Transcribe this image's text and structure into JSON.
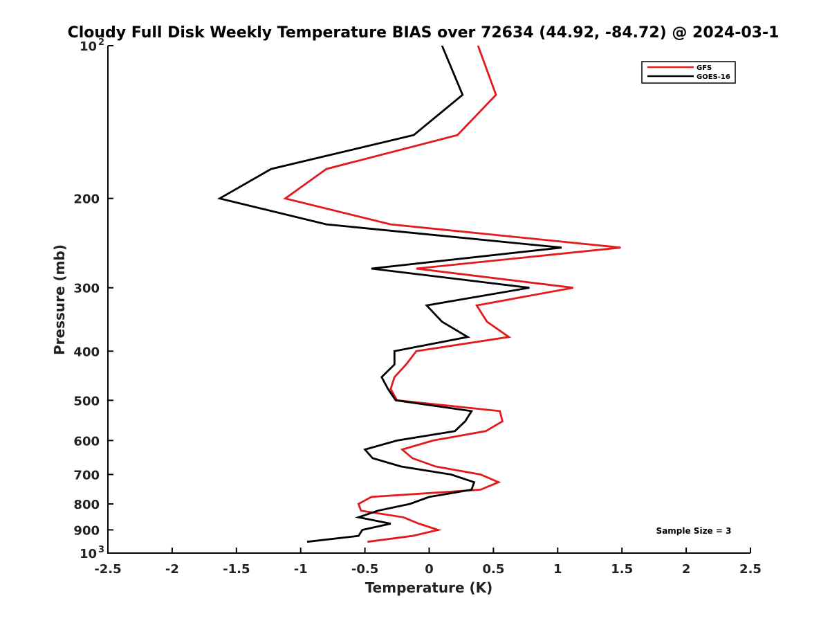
{
  "chart_data": {
    "type": "line",
    "title": "Cloudy Full Disk Weekly Temperature BIAS over 72634 (44.92, -84.72) @ 2024-03-1",
    "xlabel": "Temperature (K)",
    "ylabel": "Pressure (mb)",
    "xlim": [
      -2.5,
      2.5
    ],
    "ylim": [
      1000,
      100
    ],
    "yscale": "log",
    "grid": false,
    "legend_position": "top-right",
    "x_ticks": [
      "-2.5",
      "-2",
      "-1.5",
      "-1",
      "-0.5",
      "0",
      "0.5",
      "1",
      "1.5",
      "2",
      "2.5"
    ],
    "x_tick_values": [
      -2.5,
      -2,
      -1.5,
      -1,
      -0.5,
      0,
      0.5,
      1,
      1.5,
      2,
      2.5
    ],
    "y_ticks": [
      {
        "value": 100,
        "label": "10",
        "sup": "2"
      },
      {
        "value": 200,
        "label": "200",
        "sup": ""
      },
      {
        "value": 300,
        "label": "300",
        "sup": ""
      },
      {
        "value": 400,
        "label": "400",
        "sup": ""
      },
      {
        "value": 500,
        "label": "500",
        "sup": ""
      },
      {
        "value": 600,
        "label": "600",
        "sup": ""
      },
      {
        "value": 700,
        "label": "700",
        "sup": ""
      },
      {
        "value": 800,
        "label": "800",
        "sup": ""
      },
      {
        "value": 900,
        "label": "900",
        "sup": ""
      },
      {
        "value": 1000,
        "label": "10",
        "sup": "3"
      }
    ],
    "series": [
      {
        "name": "GFS",
        "color": "#e31a1c",
        "pressure": [
          100,
          125,
          150,
          175,
          200,
          225,
          250,
          275,
          300,
          325,
          350,
          375,
          400,
          425,
          450,
          475,
          500,
          525,
          550,
          575,
          600,
          625,
          650,
          675,
          700,
          725,
          750,
          775,
          800,
          825,
          850,
          875,
          900,
          925,
          950
        ],
        "values": [
          0.38,
          0.52,
          0.22,
          -0.8,
          -1.12,
          -0.3,
          1.49,
          -0.1,
          1.12,
          0.37,
          0.45,
          0.62,
          -0.1,
          -0.18,
          -0.27,
          -0.3,
          -0.25,
          0.55,
          0.57,
          0.44,
          0.03,
          -0.21,
          -0.13,
          0.05,
          0.4,
          0.54,
          0.4,
          -0.45,
          -0.55,
          -0.53,
          -0.2,
          -0.08,
          0.07,
          -0.13,
          -0.48
        ]
      },
      {
        "name": "GOES-16",
        "color": "#000000",
        "pressure": [
          100,
          125,
          150,
          175,
          200,
          225,
          250,
          275,
          300,
          325,
          350,
          375,
          400,
          425,
          450,
          475,
          500,
          525,
          550,
          575,
          600,
          625,
          650,
          675,
          700,
          725,
          750,
          775,
          800,
          825,
          850,
          875,
          900,
          925,
          950
        ],
        "values": [
          0.1,
          0.26,
          -0.12,
          -1.23,
          -1.63,
          -0.8,
          1.03,
          -0.45,
          0.78,
          -0.02,
          0.1,
          0.3,
          -0.27,
          -0.27,
          -0.37,
          -0.32,
          -0.26,
          0.33,
          0.28,
          0.2,
          -0.25,
          -0.5,
          -0.44,
          -0.22,
          0.17,
          0.35,
          0.33,
          0.0,
          -0.15,
          -0.4,
          -0.55,
          -0.3,
          -0.52,
          -0.55,
          -0.95
        ]
      }
    ],
    "annotation": "Sample Size = 3"
  }
}
